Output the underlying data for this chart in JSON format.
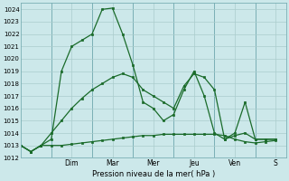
{
  "bg_color": "#cce8ea",
  "grid_color": "#aacccc",
  "line_color": "#1a6b2a",
  "xlabel": "Pression niveau de la mer( hPa )",
  "ylim": [
    1012,
    1024.5
  ],
  "xlim": [
    0,
    13
  ],
  "yticks": [
    1012,
    1013,
    1014,
    1015,
    1016,
    1017,
    1018,
    1019,
    1020,
    1021,
    1022,
    1023,
    1024
  ],
  "day_labels": [
    "Dim",
    "Mar",
    "Mer",
    "Jeu",
    "Ven",
    "S"
  ],
  "day_positions": [
    2.5,
    4.5,
    6.5,
    8.5,
    10.5,
    12.5
  ],
  "day_sep_positions": [
    1.5,
    3.5,
    5.5,
    7.5,
    9.5,
    11.5
  ],
  "s1x": [
    0,
    0.5,
    1,
    1.5,
    2,
    2.5,
    3,
    3.5,
    4,
    4.5,
    5,
    5.5,
    6,
    6.5,
    7,
    7.5,
    8,
    8.5,
    9,
    9.5,
    10,
    10.5,
    11,
    11.5,
    12,
    12.5
  ],
  "s1y": [
    1013.0,
    1012.5,
    1013.0,
    1013.0,
    1013.0,
    1013.1,
    1013.2,
    1013.3,
    1013.4,
    1013.5,
    1013.6,
    1013.7,
    1013.8,
    1013.8,
    1013.9,
    1013.9,
    1013.9,
    1013.9,
    1013.9,
    1013.9,
    1013.8,
    1013.5,
    1013.3,
    1013.2,
    1013.3,
    1013.4
  ],
  "s2x": [
    0,
    0.5,
    1,
    1.5,
    2,
    2.5,
    3,
    3.5,
    4,
    4.5,
    5,
    5.5,
    6,
    6.5,
    7,
    7.5,
    8,
    8.5,
    9,
    9.5,
    10,
    10.5,
    11,
    11.5,
    12,
    12.5
  ],
  "s2y": [
    1013.0,
    1012.5,
    1013.0,
    1013.5,
    1019.0,
    1021.0,
    1021.5,
    1022.0,
    1024.0,
    1024.1,
    1022.0,
    1019.5,
    1016.5,
    1016.0,
    1015.0,
    1015.5,
    1017.5,
    1019.0,
    1017.0,
    1014.0,
    1013.5,
    1014.0,
    1016.5,
    1013.5,
    1013.5,
    1013.5
  ],
  "s3x": [
    0,
    0.5,
    1,
    1.5,
    2,
    2.5,
    3,
    3.5,
    4,
    4.5,
    5,
    5.5,
    6,
    6.5,
    7,
    7.5,
    8,
    8.5,
    9,
    9.5,
    10,
    10.5,
    11,
    11.5,
    12,
    12.5
  ],
  "s3y": [
    1013.0,
    1012.5,
    1013.0,
    1014.0,
    1015.0,
    1016.0,
    1016.8,
    1017.5,
    1018.0,
    1018.5,
    1018.8,
    1018.5,
    1017.5,
    1017.0,
    1016.5,
    1016.0,
    1017.8,
    1018.8,
    1018.5,
    1017.5,
    1013.5,
    1013.8,
    1014.0,
    1013.5,
    1013.5,
    1013.5
  ]
}
